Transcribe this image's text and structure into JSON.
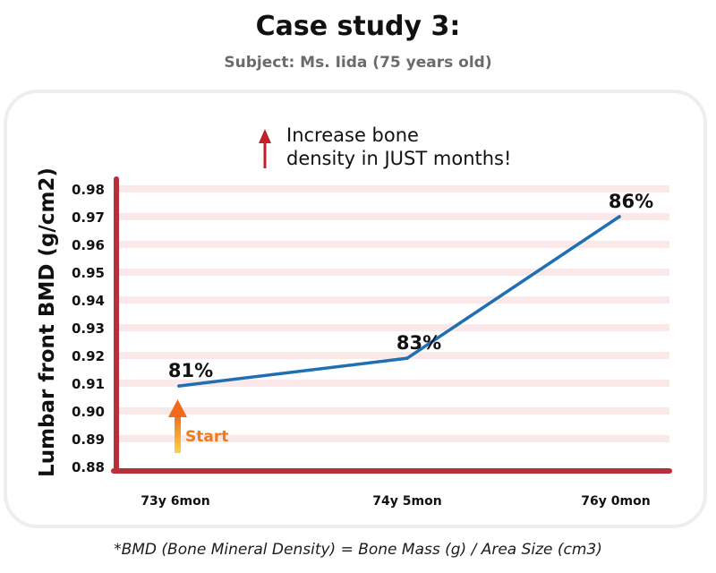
{
  "header": {
    "title": "Case study 3:",
    "subtitle": "Subject: Ms. Iida (75 years old)"
  },
  "callout": {
    "line1": "Increase bone",
    "line2": "density in JUST months!"
  },
  "start_label": "Start",
  "footnote": "*BMD (Bone Mineral Density) = Bone Mass (g) / Area Size (cm3)",
  "colors": {
    "line": "#1f6fb5",
    "axis": "#b5303a",
    "gridline": "#fbe9ea",
    "arrow_red": "#c0202a",
    "start_orange": "#f07a1a"
  },
  "chart_data": {
    "type": "line",
    "title": "",
    "xlabel": "",
    "ylabel": "Lumbar front BMD (g/cm2)",
    "categories": [
      "73y 6mon",
      "74y 5mon",
      "76y 0mon"
    ],
    "series": [
      {
        "values": [
          0.909,
          0.919,
          0.97
        ],
        "data_labels": [
          "81%",
          "83%",
          "86%"
        ]
      }
    ],
    "ylim": [
      0.88,
      0.98
    ],
    "yticks": [
      "0.88",
      "0.89",
      "0.90",
      "0.91",
      "0.92",
      "0.93",
      "0.94",
      "0.95",
      "0.96",
      "0.97",
      "0.98"
    ],
    "grid": true,
    "legend": "none"
  }
}
